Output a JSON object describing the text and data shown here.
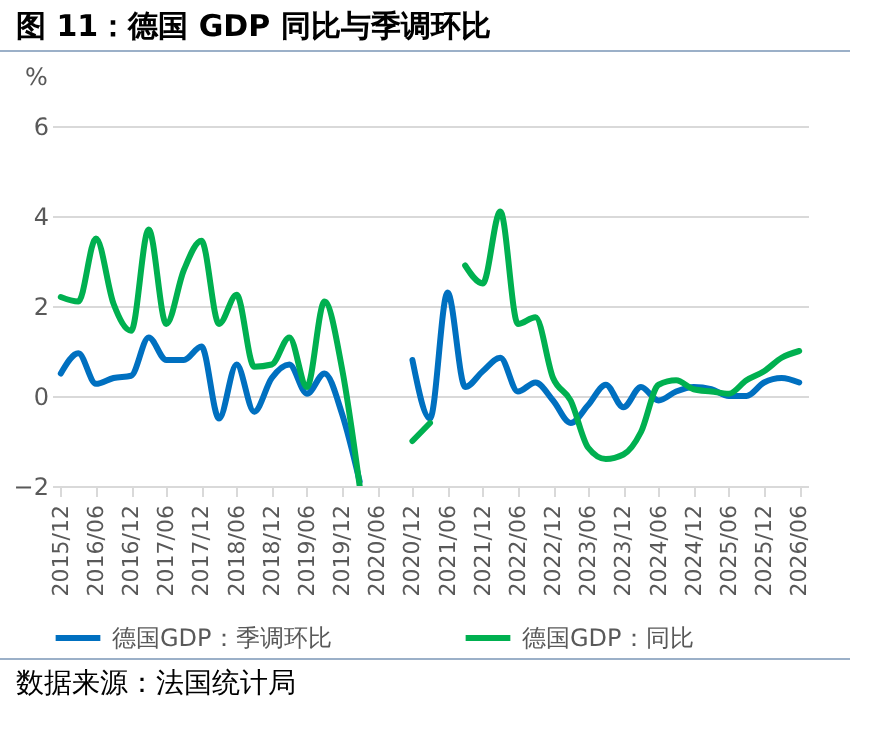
{
  "chart_data": {
    "type": "line",
    "title": "图 11：德国 GDP 同比与季调环比",
    "ylabel": "%",
    "categories": [
      "2015/12",
      null,
      "2016/06",
      null,
      "2016/12",
      null,
      "2017/06",
      null,
      "2017/12",
      null,
      "2018/06",
      null,
      "2018/12",
      null,
      "2019/06",
      null,
      "2019/12",
      null,
      "2020/06",
      null,
      "2020/12",
      null,
      "2021/06",
      null,
      "2021/12",
      null,
      "2022/06",
      null,
      "2022/12",
      null,
      "2023/06",
      null,
      "2023/12",
      null,
      "2024/06",
      null,
      "2024/12",
      null,
      "2025/06",
      null,
      "2025/12",
      null,
      "2026/06"
    ],
    "series": [
      {
        "name": "德国GDP：季调环比",
        "color": "#0070c0",
        "values": [
          0.5,
          0.95,
          0.27,
          0.4,
          0.45,
          1.3,
          0.8,
          0.8,
          1.1,
          -0.5,
          0.7,
          -0.35,
          0.4,
          0.7,
          0.05,
          0.5,
          -0.4,
          -1.9,
          null,
          null,
          0.8,
          -0.5,
          2.3,
          0.2,
          0.55,
          0.85,
          0.1,
          0.3,
          -0.1,
          -0.6,
          -0.2,
          0.25,
          -0.25,
          0.2,
          -0.1,
          0.1,
          0.2,
          0.15,
          0.0,
          0.0,
          0.3,
          0.4,
          0.3
        ]
      },
      {
        "name": "德国GDP：同比",
        "color": "#00b050",
        "values": [
          2.2,
          2.1,
          3.5,
          2.05,
          1.45,
          3.7,
          1.6,
          2.8,
          3.45,
          1.6,
          2.25,
          0.65,
          0.7,
          1.3,
          0.2,
          2.1,
          0.6,
          -2.0,
          null,
          null,
          -1.0,
          -0.6,
          null,
          2.9,
          2.5,
          4.1,
          1.6,
          1.75,
          0.4,
          -0.1,
          -1.15,
          -1.4,
          -1.3,
          -0.8,
          0.25,
          0.35,
          0.15,
          0.1,
          0.05,
          0.35,
          0.55,
          0.85,
          1.0
        ]
      }
    ],
    "ylim": [
      -2,
      6
    ],
    "yticks": [
      -2,
      0,
      2,
      4,
      6
    ],
    "grid": "y",
    "legend": "bottom",
    "annotations": [
      "数据来源：法国统计局"
    ]
  }
}
